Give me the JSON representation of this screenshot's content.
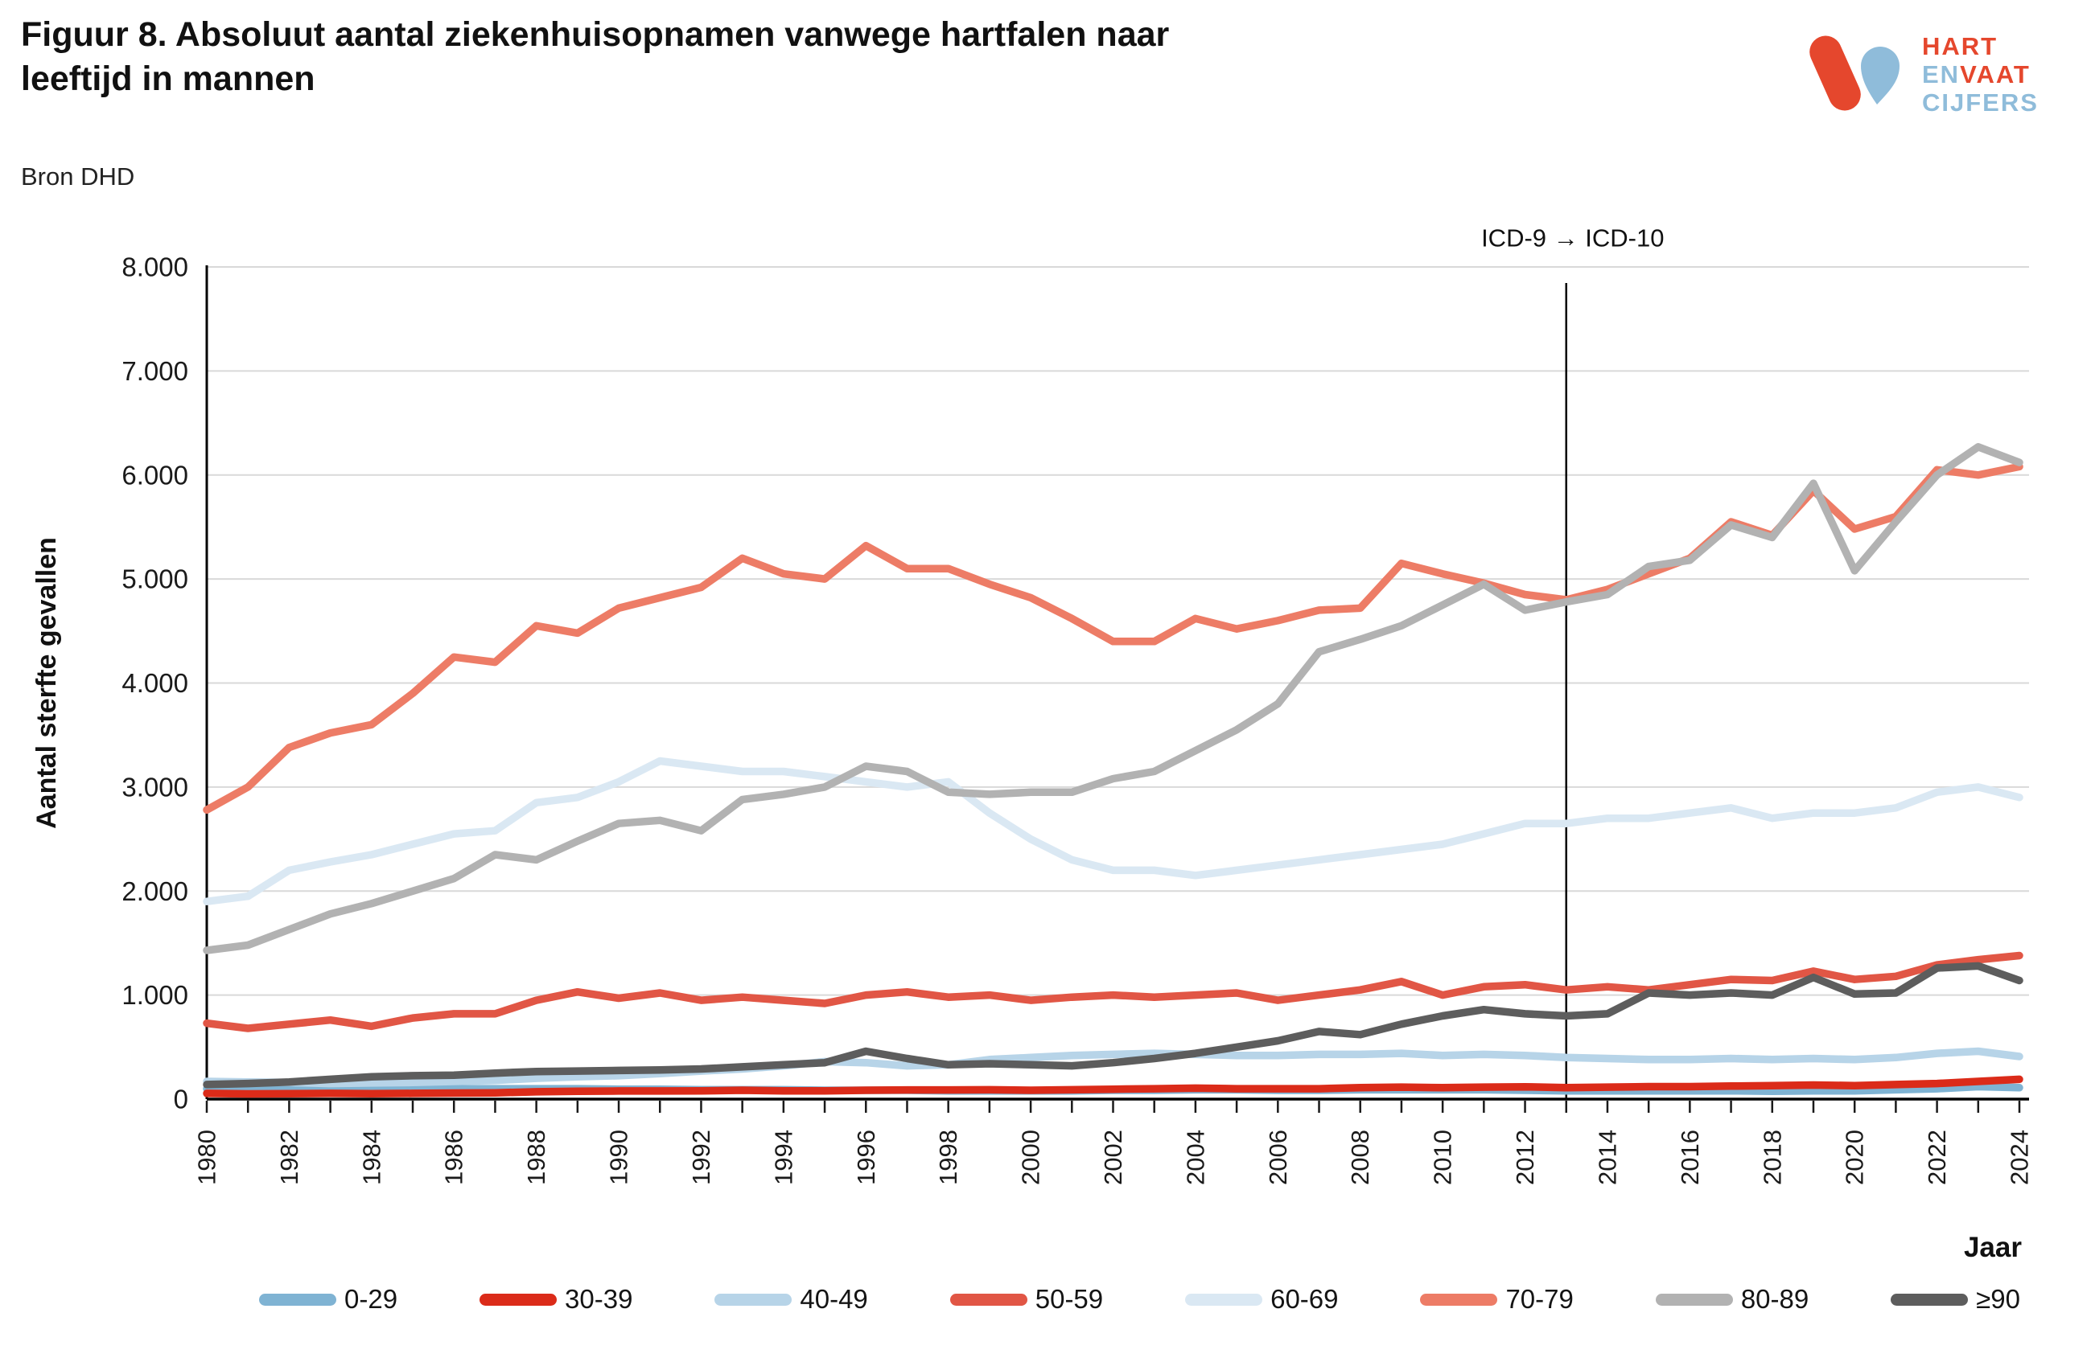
{
  "header": {
    "title_line1": "Figuur 8. Absoluut aantal ziekenhuisopnamen vanwege hartfalen naar",
    "title_line2": "leeftijd in mannen",
    "source": "Bron DHD"
  },
  "logo": {
    "word1": "HART",
    "word2a": "EN",
    "word2b": "VAAT",
    "word3": "CIJFERS",
    "red": "#E5472D",
    "blue": "#8FBCDA"
  },
  "annotation": {
    "text": "ICD-9 → ICD-10",
    "year": 2013
  },
  "axes": {
    "y_title": "Aantal sterfte gevallen",
    "x_title": "Jaar",
    "y_tick_labels": [
      "0",
      "1.000",
      "2.000",
      "3.000",
      "4.000",
      "5.000",
      "6.000",
      "7.000",
      "8.000"
    ],
    "x_label_every_years": 2
  },
  "chart_data": {
    "type": "line",
    "title": "Figuur 8. Absoluut aantal ziekenhuisopnamen vanwege hartfalen naar leeftijd in mannen",
    "xlabel": "Jaar",
    "ylabel": "Aantal sterfte gevallen",
    "x_range": [
      1980,
      2024
    ],
    "ylim": [
      0,
      8000
    ],
    "grid": true,
    "legend_position": "bottom",
    "x": [
      1980,
      1981,
      1982,
      1983,
      1984,
      1985,
      1986,
      1987,
      1988,
      1989,
      1990,
      1991,
      1992,
      1993,
      1994,
      1995,
      1996,
      1997,
      1998,
      1999,
      2000,
      2001,
      2002,
      2003,
      2004,
      2005,
      2006,
      2007,
      2008,
      2009,
      2010,
      2011,
      2012,
      2013,
      2014,
      2015,
      2016,
      2017,
      2018,
      2019,
      2020,
      2021,
      2022,
      2023,
      2024
    ],
    "series": [
      {
        "name": "0-29",
        "color": "#7FB3D3",
        "values": [
          100,
          100,
          100,
          100,
          100,
          100,
          100,
          100,
          100,
          100,
          95,
          95,
          90,
          90,
          90,
          85,
          85,
          85,
          80,
          80,
          80,
          80,
          85,
          85,
          90,
          90,
          85,
          85,
          90,
          90,
          90,
          90,
          85,
          80,
          80,
          80,
          80,
          80,
          75,
          80,
          80,
          90,
          100,
          120,
          110
        ]
      },
      {
        "name": "30-39",
        "color": "#DB2B19",
        "values": [
          55,
          50,
          52,
          55,
          52,
          55,
          58,
          60,
          70,
          75,
          78,
          78,
          80,
          85,
          80,
          80,
          85,
          88,
          88,
          90,
          85,
          90,
          95,
          100,
          105,
          100,
          100,
          100,
          110,
          115,
          110,
          115,
          118,
          110,
          115,
          120,
          120,
          125,
          130,
          135,
          130,
          140,
          150,
          170,
          190
        ]
      },
      {
        "name": "40-49",
        "color": "#B7D4E8",
        "values": [
          170,
          165,
          160,
          150,
          155,
          160,
          170,
          180,
          200,
          215,
          225,
          245,
          270,
          290,
          320,
          360,
          350,
          320,
          330,
          380,
          400,
          420,
          430,
          440,
          430,
          420,
          420,
          430,
          430,
          440,
          420,
          430,
          420,
          400,
          390,
          380,
          380,
          390,
          380,
          390,
          380,
          400,
          440,
          460,
          410
        ]
      },
      {
        "name": "50-59",
        "color": "#E15645",
        "values": [
          730,
          680,
          720,
          760,
          700,
          780,
          820,
          820,
          950,
          1030,
          970,
          1020,
          950,
          980,
          950,
          920,
          1000,
          1030,
          980,
          1000,
          950,
          980,
          1000,
          980,
          1000,
          1020,
          950,
          1000,
          1050,
          1130,
          1000,
          1080,
          1100,
          1050,
          1080,
          1050,
          1100,
          1150,
          1140,
          1230,
          1150,
          1180,
          1290,
          1340,
          1380
        ]
      },
      {
        "name": "60-69",
        "color": "#DAE8F3",
        "values": [
          1900,
          1950,
          2200,
          2280,
          2350,
          2450,
          2550,
          2580,
          2850,
          2900,
          3050,
          3250,
          3200,
          3150,
          3150,
          3100,
          3050,
          3000,
          3050,
          2750,
          2500,
          2300,
          2200,
          2200,
          2150,
          2200,
          2250,
          2300,
          2350,
          2400,
          2450,
          2550,
          2650,
          2650,
          2700,
          2700,
          2750,
          2800,
          2700,
          2750,
          2750,
          2800,
          2950,
          3000,
          2900
        ]
      },
      {
        "name": "70-79",
        "color": "#ED7C66",
        "values": [
          2780,
          3000,
          3380,
          3520,
          3600,
          3900,
          4250,
          4200,
          4550,
          4480,
          4720,
          4820,
          4920,
          5200,
          5050,
          5000,
          5320,
          5100,
          5100,
          4950,
          4820,
          4620,
          4400,
          4400,
          4620,
          4520,
          4600,
          4700,
          4720,
          5150,
          5050,
          4960,
          4850,
          4800,
          4900,
          5050,
          5200,
          5550,
          5420,
          5850,
          5480,
          5600,
          6050,
          6000,
          6080
        ]
      },
      {
        "name": "80-89",
        "color": "#B2B2B2",
        "values": [
          1430,
          1480,
          1630,
          1780,
          1880,
          2000,
          2120,
          2350,
          2300,
          2480,
          2650,
          2680,
          2580,
          2880,
          2930,
          3000,
          3200,
          3150,
          2950,
          2930,
          2950,
          2950,
          3080,
          3150,
          3350,
          3550,
          3800,
          4300,
          4420,
          4550,
          4750,
          4950,
          4700,
          4780,
          4850,
          5120,
          5180,
          5520,
          5400,
          5920,
          5080,
          5550,
          6000,
          6270,
          6120
        ]
      },
      {
        "name": "≥90",
        "color": "#5D5D5D",
        "values": [
          140,
          150,
          165,
          190,
          215,
          225,
          230,
          250,
          265,
          270,
          275,
          280,
          290,
          310,
          330,
          350,
          460,
          390,
          330,
          340,
          330,
          320,
          350,
          390,
          440,
          500,
          560,
          650,
          620,
          720,
          800,
          860,
          820,
          800,
          820,
          1020,
          1000,
          1020,
          1000,
          1170,
          1010,
          1020,
          1260,
          1280,
          1140
        ]
      }
    ]
  }
}
